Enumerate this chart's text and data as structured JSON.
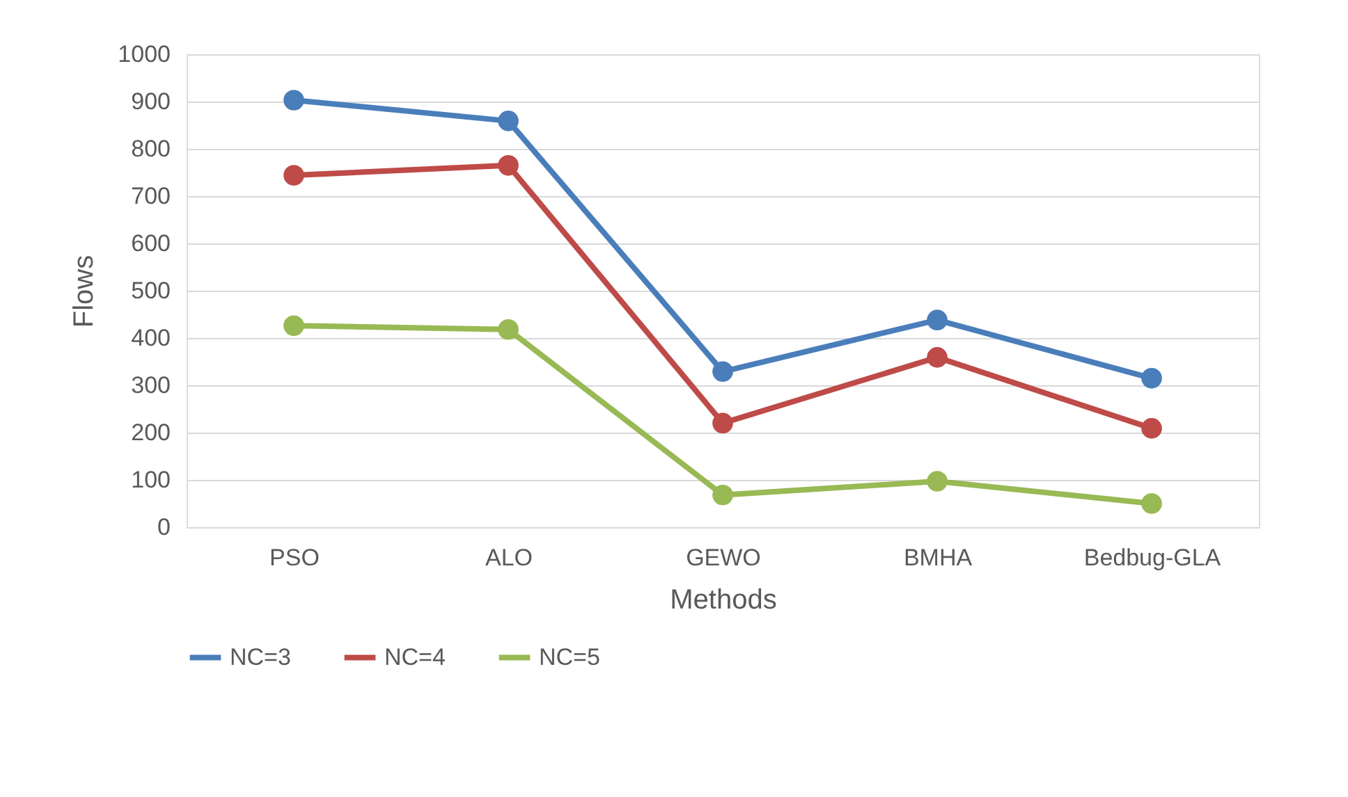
{
  "chart_data": {
    "type": "line",
    "xlabel": "Methods",
    "ylabel": "Flows",
    "categories": [
      "PSO",
      "ALO",
      "GEWO",
      "BMHA",
      "Bedbug-GLA"
    ],
    "series": [
      {
        "name": "NC=3",
        "color": "#4a7ebb",
        "values": [
          903,
          859,
          329,
          438,
          315
        ]
      },
      {
        "name": "NC=4",
        "color": "#be4b48",
        "values": [
          744,
          765,
          220,
          359,
          209
        ]
      },
      {
        "name": "NC=5",
        "color": "#98b954",
        "values": [
          426,
          418,
          68,
          97,
          50
        ]
      }
    ],
    "ylim": [
      0,
      1000
    ],
    "yticks": [
      0,
      100,
      200,
      300,
      400,
      500,
      600,
      700,
      800,
      900,
      1000
    ],
    "grid": "y",
    "legend": "bottom",
    "marker": "circle",
    "line_style": "solid"
  }
}
